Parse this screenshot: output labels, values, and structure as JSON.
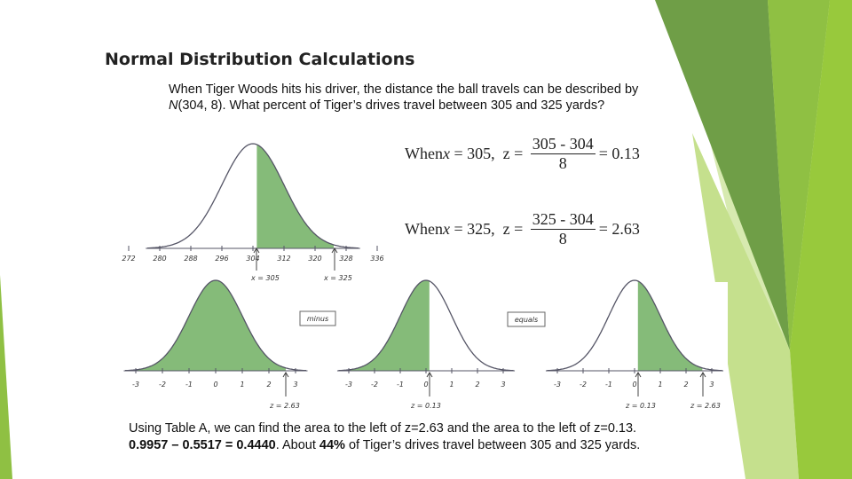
{
  "title": "Normal Distribution Calculations",
  "intro": {
    "part1": "When Tiger Woods hits his driver, the distance the ball travels can be described by ",
    "italic": "N",
    "part2": "(304, 8).  What percent of Tiger’s drives travel between 305 and 325 yards?"
  },
  "equations": [
    {
      "lead": "When ",
      "var": "x",
      "mid": " = 305,  z = ",
      "numerator": "305 - 304",
      "denominator": "8",
      "result": "= 0.13"
    },
    {
      "lead": "When ",
      "var": "x",
      "mid": " = 325,  z = ",
      "numerator": "325 - 304",
      "denominator": "8",
      "result": "= 2.63"
    }
  ],
  "top_curve": {
    "ticks": [
      272,
      280,
      288,
      296,
      304,
      312,
      320,
      328,
      336
    ],
    "markers": [
      "x = 305",
      "x = 325"
    ]
  },
  "bottom_curves": [
    {
      "ticks": [
        -3,
        -2,
        -1,
        0,
        1,
        2,
        3
      ],
      "markers": [
        "z = 2.63"
      ]
    },
    {
      "ticks": [
        -3,
        -2,
        -1,
        0,
        1,
        2,
        3
      ],
      "markers": [
        "z = 0.13"
      ]
    },
    {
      "ticks": [
        -3,
        -2,
        -1,
        0,
        1,
        2,
        3
      ],
      "markers": [
        "z = 0.13",
        "z = 2.63"
      ]
    }
  ],
  "operators": [
    "minus",
    "equals"
  ],
  "conclusion": {
    "line1": "Using Table A, we can find the area to the left of z=2.63 and the area to the left of z=0.13.",
    "bold1": "0.9957 – 0.5517 = 0.4440",
    "mid": ". About ",
    "bold2": "44%",
    "end": " of Tiger’s drives travel between 305 and 325  yards."
  }
}
